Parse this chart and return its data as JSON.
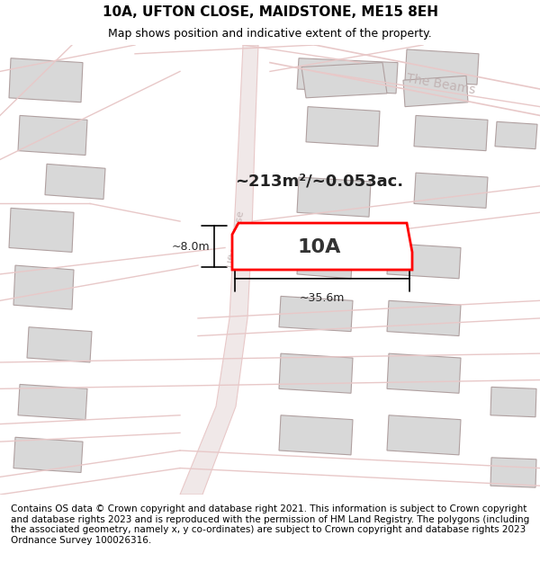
{
  "title": "10A, UFTON CLOSE, MAIDSTONE, ME15 8EH",
  "subtitle": "Map shows position and indicative extent of the property.",
  "footer": "Contains OS data © Crown copyright and database right 2021. This information is subject to Crown copyright and database rights 2023 and is reproduced with the permission of HM Land Registry. The polygons (including the associated geometry, namely x, y co-ordinates) are subject to Crown copyright and database rights 2023 Ordnance Survey 100026316.",
  "bg_color": "#ffffff",
  "map_bg": "#f9f4f4",
  "road_color": "#e8c8c8",
  "building_fill": "#d8d8d8",
  "building_edge": "#c0c0c0",
  "highlight_fill": "#ffffff",
  "highlight_edge": "#ff0000",
  "street_label_color": "#b0b0b0",
  "area_label": "~213m²/~0.053ac.",
  "plot_label": "10A",
  "dim_width": "~35.6m",
  "dim_height": "~8.0m",
  "title_fontsize": 11,
  "subtitle_fontsize": 9,
  "footer_fontsize": 7.5
}
